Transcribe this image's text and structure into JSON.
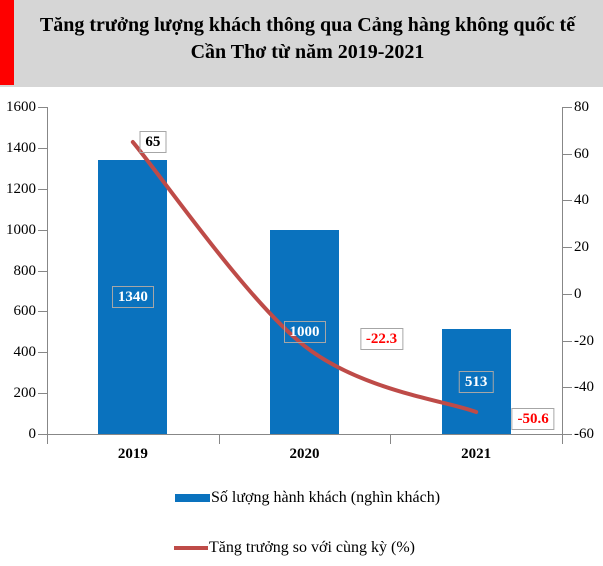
{
  "header": {
    "title": "Tăng trưởng lượng khách thông qua Cảng hàng không quốc tế Cần Thơ từ năm 2019-2021"
  },
  "colors": {
    "title_bg_gray": "#D6D6D6",
    "title_accent_red": "#FE0000",
    "bar_blue": "#0A72BE",
    "line_red": "#BE4B48",
    "negative_label_red": "#FF0000",
    "positive_label_black": "#000000",
    "bar_label_white": "#FFFFFF",
    "label_box_border": "#A6A6A6",
    "axis_gray": "#878787"
  },
  "chart_data": {
    "type": "bar",
    "subtype": "bar-and-line-combo",
    "title": "Tăng trưởng lượng khách thông qua Cảng hàng không quốc tế Cần Thơ từ năm 2019-2021",
    "categories": [
      "2019",
      "2020",
      "2021"
    ],
    "series": [
      {
        "name": "Số lượng hành khách (nghìn khách)",
        "type": "bar",
        "axis": "left",
        "color": "#0A72BE",
        "values": [
          1340,
          1000,
          513
        ],
        "data_labels": [
          "1340",
          "1000",
          "513"
        ]
      },
      {
        "name": "Tăng trưởng so với cùng kỳ (%)",
        "type": "line",
        "axis": "right",
        "color": "#BE4B48",
        "values": [
          65,
          -22.3,
          -50.6
        ],
        "data_labels": [
          "65",
          "-22.3",
          "-50.6"
        ]
      }
    ],
    "left_axis": {
      "min": 0,
      "max": 1600,
      "tick_labels": [
        "0",
        "200",
        "400",
        "600",
        "800",
        "1000",
        "1200",
        "1400",
        "1600"
      ]
    },
    "right_axis": {
      "min": -60,
      "max": 80,
      "tick_labels": [
        "-60",
        "-40",
        "-20",
        "0",
        "20",
        "40",
        "60",
        "80"
      ]
    },
    "grid": false,
    "legend_position": "bottom"
  }
}
